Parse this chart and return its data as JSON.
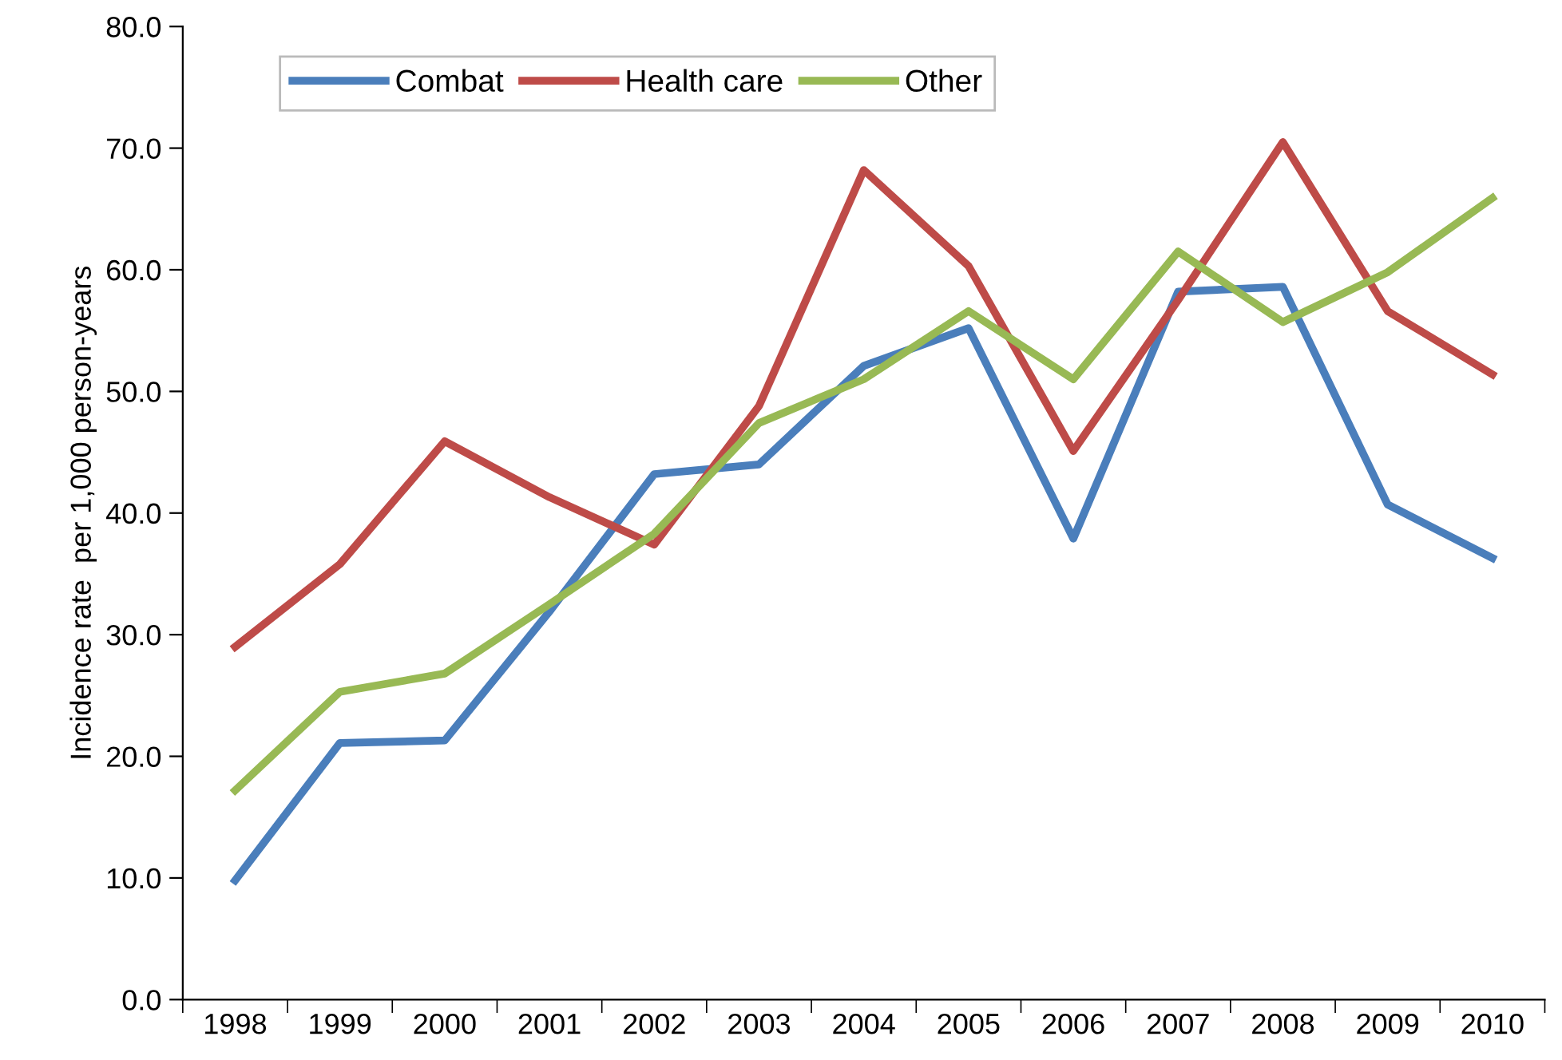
{
  "chart_data": {
    "type": "line",
    "ylabel": "Incidence rate  per 1,000 person-years",
    "categories": [
      "1998",
      "1999",
      "2000",
      "2001",
      "2002",
      "2003",
      "2004",
      "2005",
      "2006",
      "2007",
      "2008",
      "2009",
      "2010"
    ],
    "series": [
      {
        "name": "Combat",
        "color": "#4a7ebb",
        "values": [
          9.8,
          21.1,
          21.3,
          31.9,
          43.2,
          44.0,
          52.1,
          55.2,
          37.9,
          58.2,
          58.6,
          40.7,
          36.3
        ]
      },
      {
        "name": "Health care",
        "color": "#be4b48",
        "values": [
          29.0,
          35.8,
          45.9,
          41.3,
          37.4,
          48.8,
          68.2,
          60.3,
          45.1,
          57.5,
          70.5,
          56.6,
          51.4
        ]
      },
      {
        "name": "Other",
        "color": "#98b954",
        "values": [
          17.2,
          25.3,
          26.8,
          32.5,
          38.3,
          47.4,
          51.0,
          56.6,
          51.0,
          61.5,
          55.7,
          59.8,
          65.9
        ]
      }
    ],
    "ylim": [
      0,
      80
    ],
    "yticks": [
      {
        "value": 0,
        "label": "0.0"
      },
      {
        "value": 10,
        "label": "10.0"
      },
      {
        "value": 20,
        "label": "20.0"
      },
      {
        "value": 30,
        "label": "30.0"
      },
      {
        "value": 40,
        "label": "40.0"
      },
      {
        "value": 50,
        "label": "50.0"
      },
      {
        "value": 60,
        "label": "60.0"
      },
      {
        "value": 70,
        "label": "70.0"
      },
      {
        "value": 80,
        "label": "80.0"
      }
    ],
    "grid": false,
    "legend": "top left",
    "marker": "none",
    "line_style": "solid"
  }
}
